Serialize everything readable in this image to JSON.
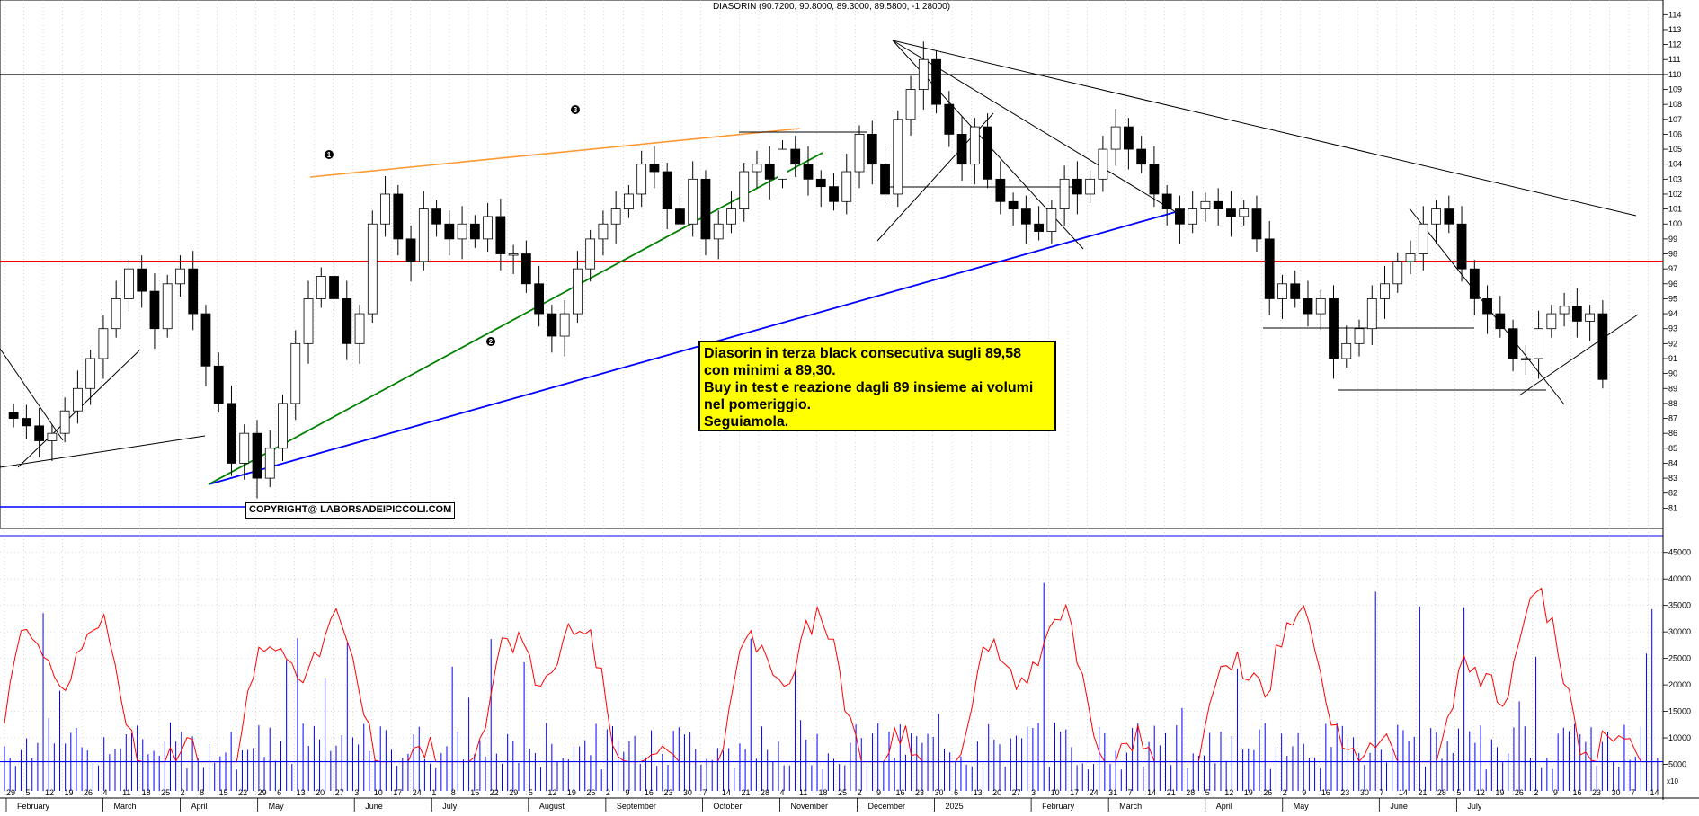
{
  "title": "DIASORIN (90.7200, 90.8000, 89.3000, 89.5800, -1.28000)",
  "note": {
    "lines": [
      "Diasorin in terza black consecutiva sugli 89,58",
      "con minimi a 89,30.",
      "Buy in test e reazione dagli 89 insieme ai volumi",
      "nel pomeriggio.",
      "Seguiamola."
    ]
  },
  "copyright": "COPYRIGHT@ LABORSADEIPICCOLI.COM",
  "volume_axis_unit": "x10",
  "colors": {
    "price_line": "#000000",
    "red_line": "#ff0000",
    "blue_line": "#0000ff",
    "green_line": "#008000",
    "orange_line": "#ff9933",
    "volume_bars": "#0000ff",
    "volume_avg": "#ff0000",
    "note_bg": "#ffff00"
  },
  "chart_data": [
    {
      "type": "candlestick",
      "series_name": "DIASORIN",
      "ylim": [
        80,
        114.5
      ],
      "yticks": [
        81,
        82,
        83,
        84,
        85,
        86,
        87,
        88,
        89,
        90,
        91,
        92,
        93,
        94,
        95,
        96,
        97,
        98,
        99,
        100,
        101,
        102,
        103,
        104,
        105,
        106,
        107,
        108,
        109,
        110,
        111,
        112,
        113,
        114
      ],
      "month_labels": [
        "February",
        "March",
        "April",
        "May",
        "June",
        "July",
        "August",
        "September",
        "October",
        "November",
        "December",
        "2025",
        "February",
        "March",
        "April",
        "May",
        "June",
        "July"
      ],
      "day_labels": [
        "29",
        "5",
        "12",
        "19",
        "26",
        "4",
        "11",
        "18",
        "25",
        "2",
        "8",
        "15",
        "22",
        "29",
        "6",
        "13",
        "20",
        "27",
        "3",
        "10",
        "17",
        "24",
        "1",
        "8",
        "15",
        "22",
        "29",
        "5",
        "12",
        "19",
        "26",
        "2",
        "9",
        "16",
        "23",
        "30",
        "7",
        "14",
        "21",
        "28",
        "4",
        "11",
        "18",
        "25",
        "2",
        "9",
        "16",
        "23",
        "30",
        "6",
        "13",
        "20",
        "27",
        "3",
        "10",
        "17",
        "24",
        "31",
        "7",
        "14",
        "21",
        "28",
        "5",
        "12",
        "19",
        "26",
        "2",
        "9",
        "16",
        "23",
        "30",
        "7",
        "14",
        "21",
        "28",
        "5",
        "12",
        "19",
        "26",
        "2",
        "9",
        "16",
        "23",
        "30",
        "7",
        "14"
      ],
      "closes": [
        87,
        86.5,
        85.5,
        86,
        87.5,
        89,
        91,
        93,
        95,
        97,
        95.5,
        93,
        96,
        97,
        94,
        90.5,
        88,
        84,
        86,
        83,
        85,
        88,
        92,
        95,
        96.5,
        95,
        92,
        94,
        100,
        102,
        99,
        97.5,
        101,
        100,
        99,
        100,
        99,
        100.5,
        98,
        98,
        96,
        94,
        92.5,
        94,
        97,
        99,
        100,
        101,
        102,
        104,
        103.5,
        101,
        100,
        103,
        99,
        100,
        101,
        103.5,
        104,
        103,
        105,
        104,
        103,
        102.5,
        101.5,
        103.5,
        106,
        104,
        102,
        107,
        109,
        111,
        108,
        106,
        104,
        106.5,
        103,
        101.5,
        101,
        100,
        99.5,
        101,
        103,
        102,
        103,
        105,
        106.5,
        105,
        104,
        102,
        101,
        100,
        101,
        101.5,
        101,
        100.5,
        101,
        99,
        95,
        96,
        95,
        94,
        95,
        91,
        92,
        93,
        95,
        96,
        97.5,
        98,
        100,
        101,
        100,
        97,
        95,
        94,
        93,
        91,
        91,
        93,
        94,
        94.5,
        93.5,
        94,
        89.6
      ],
      "resistance_levels": [
        110,
        97.5
      ],
      "annotations": [
        "1",
        "2",
        "3"
      ]
    },
    {
      "type": "bar+line",
      "series_name": "Volume",
      "ylim": [
        0,
        47500
      ],
      "yticks": [
        5000,
        10000,
        15000,
        20000,
        25000,
        30000,
        35000,
        40000,
        45000
      ],
      "reference_level": 5500
    }
  ]
}
